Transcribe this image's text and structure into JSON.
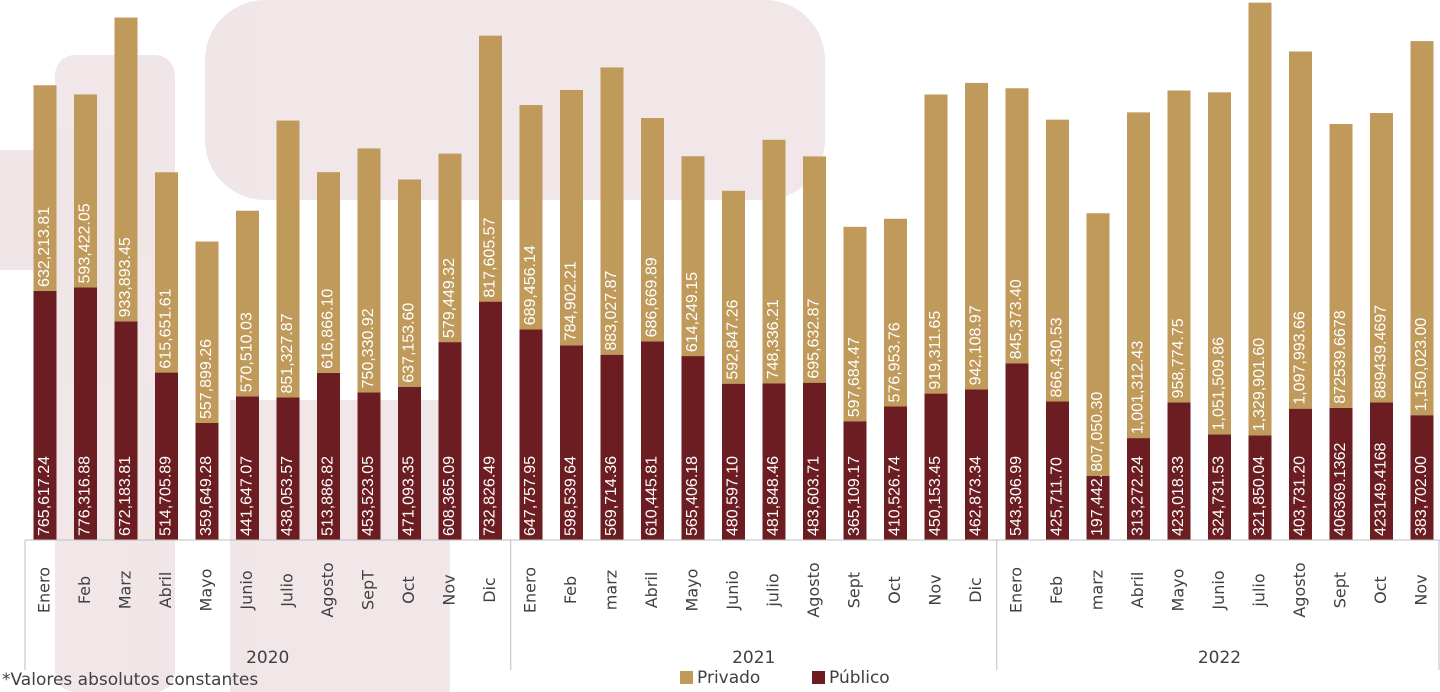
{
  "chart_data": {
    "type": "stacked-bar",
    "groups": [
      {
        "label": "2020",
        "categories": [
          "Enero",
          "Feb",
          "Marz",
          "Abril",
          "Mayo",
          "Junio",
          "Julio",
          "Agosto",
          "SepT",
          "Oct",
          "Nov",
          "Dic"
        ]
      },
      {
        "label": "2021",
        "categories": [
          "Enero",
          "Feb",
          "marz",
          "Abril",
          "Mayo",
          "Junio",
          "julio",
          "Agosto",
          "Sept",
          "Oct",
          "Nov",
          "Dic"
        ]
      },
      {
        "label": "2022",
        "categories": [
          "Enero",
          "Feb",
          "marz",
          "Abril",
          "Mayo",
          "Junio",
          "julio",
          "Agosto",
          "Sept",
          "Oct",
          "Nov"
        ]
      }
    ],
    "series": [
      {
        "name": "Público",
        "color": "#6b1d22",
        "values": [
          765617.24,
          776316.88,
          672183.81,
          514705.89,
          359649.28,
          441647.07,
          438053.57,
          513886.82,
          453523.05,
          471093.35,
          608365.09,
          732826.49,
          647757.95,
          598539.64,
          569714.36,
          610445.81,
          565406.18,
          480597.1,
          481848.46,
          483603.71,
          365109.17,
          410526.74,
          450153.45,
          462873.34,
          543306.99,
          425711.7,
          197442.59,
          313272.24,
          423018.33,
          324731.53,
          321850.04,
          403731.2,
          406369.1362,
          423149.4168,
          383702.0
        ],
        "value_labels": [
          "765,617.24",
          "776,316.88",
          "672,183.81",
          "514,705.89",
          "359,649.28",
          "441,647.07",
          "438,053.57",
          "513,886.82",
          "453,523.05",
          "471,093.35",
          "608,365.09",
          "732,826.49",
          "647,757.95",
          "598,539.64",
          "569,714.36",
          "610,445.81",
          "565,406.18",
          "480,597.10",
          "481,848.46",
          "483,603.71",
          "365,109.17",
          "410,526.74",
          "450,153.45",
          "462,873.34",
          "543,306.99",
          "425,711.70",
          "197,442.59",
          "313,272.24",
          "423,018.33",
          "324,731.53",
          "321,850.04",
          "403,731.20",
          "406369.1362",
          "423149.4168",
          "383,702.00"
        ]
      },
      {
        "name": "Privado",
        "color": "#c09a5b",
        "values": [
          632213.81,
          593422.05,
          933893.45,
          615651.61,
          557899.26,
          570510.03,
          851327.87,
          616866.1,
          750330.92,
          637153.6,
          579449.32,
          817605.57,
          689456.14,
          784902.21,
          883027.87,
          686669.89,
          614249.15,
          592847.26,
          748336.21,
          695632.87,
          597684.47,
          576953.76,
          919311.65,
          942108.97,
          845373.4,
          866430.53,
          807050.3,
          1001312.43,
          958774.75,
          1051509.86,
          1329901.6,
          1097993.66,
          872539.6678,
          889439.4697,
          1150023.0
        ],
        "value_labels": [
          "632,213.81",
          "593,422.05",
          "933,893.45",
          "615,651.61",
          "557,899.26",
          "570,510.03",
          "851,327.87",
          "616,866.10",
          "750,330.92",
          "637,153.60",
          "579,449.32",
          "817,605.57",
          "689,456.14",
          "784,902.21",
          "883,027.87",
          "686,669.89",
          "614,249.15",
          "592,847.26",
          "748,336.21",
          "695,632.87",
          "597,684.47",
          "576,953.76",
          "919,311.65",
          "942,108.97",
          "845,373.40",
          "866,430.53",
          "807,050.30",
          "1,001,312.43",
          "958,774.75",
          "1,051,509.86",
          "1,329,901.60",
          "1,097,993.66",
          "872539.6678",
          "889439.4697",
          "1,150,023.00"
        ]
      }
    ],
    "ylim": [
      0,
      1660000
    ],
    "note": "*Valores absolutos constantes"
  }
}
